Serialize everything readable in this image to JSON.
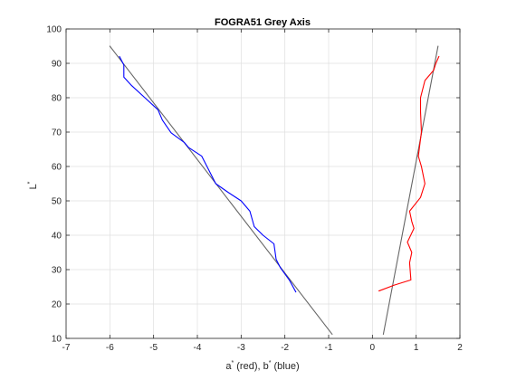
{
  "chart_data": {
    "type": "line",
    "title": "FOGRA51 Grey Axis",
    "xlabel": {
      "a_part": "a",
      "a_sup": "*",
      "a_rest": " (red), b",
      "b_sup": "*",
      "b_rest": " (blue)"
    },
    "ylabel": {
      "main": "L",
      "sup": "*"
    },
    "xlim": [
      -7,
      2
    ],
    "ylim": [
      10,
      100
    ],
    "xticks": [
      "-7",
      "-6",
      "-5",
      "-4",
      "-3",
      "-2",
      "-1",
      "0",
      "1",
      "2"
    ],
    "yticks": [
      "10",
      "20",
      "30",
      "40",
      "50",
      "60",
      "70",
      "80",
      "90",
      "100"
    ],
    "grid": true,
    "legend": "none",
    "series": [
      {
        "color": "#0000ff",
        "points": [
          [
            -5.78,
            92.0
          ],
          [
            -5.68,
            89.5
          ],
          [
            -5.68,
            86.0
          ],
          [
            -5.5,
            83.5
          ],
          [
            -5.2,
            80.0
          ],
          [
            -4.9,
            76.5
          ],
          [
            -4.8,
            73.5
          ],
          [
            -4.6,
            69.8
          ],
          [
            -4.3,
            67.0
          ],
          [
            -4.2,
            65.5
          ],
          [
            -3.9,
            63.0
          ],
          [
            -3.7,
            58.0
          ],
          [
            -3.58,
            55.0
          ],
          [
            -3.3,
            52.5
          ],
          [
            -3.0,
            50.0
          ],
          [
            -2.8,
            47.0
          ],
          [
            -2.7,
            42.5
          ],
          [
            -2.5,
            40.0
          ],
          [
            -2.25,
            37.5
          ],
          [
            -2.2,
            33.0
          ],
          [
            -2.1,
            30.5
          ],
          [
            -1.9,
            27.0
          ],
          [
            -1.75,
            23.5
          ]
        ]
      },
      {
        "color": "#ff0000",
        "points": [
          [
            1.52,
            92.0
          ],
          [
            1.45,
            90.0
          ],
          [
            1.4,
            88.0
          ],
          [
            1.2,
            85.0
          ],
          [
            1.1,
            80.0
          ],
          [
            1.1,
            76.0
          ],
          [
            1.12,
            70.0
          ],
          [
            1.05,
            63.0
          ],
          [
            1.12,
            60.0
          ],
          [
            1.2,
            55.0
          ],
          [
            1.1,
            51.0
          ],
          [
            0.85,
            47.0
          ],
          [
            0.9,
            44.0
          ],
          [
            0.95,
            42.0
          ],
          [
            0.8,
            38.0
          ],
          [
            0.9,
            35.0
          ],
          [
            0.85,
            32.0
          ],
          [
            0.88,
            27.0
          ],
          [
            0.5,
            25.5
          ],
          [
            0.15,
            23.8
          ]
        ]
      },
      {
        "color": "#666666",
        "points": [
          [
            -6.0,
            95.0
          ],
          [
            -0.92,
            11.2
          ]
        ]
      },
      {
        "color": "#666666",
        "points": [
          [
            0.25,
            11.2
          ],
          [
            1.5,
            95.0
          ]
        ]
      }
    ]
  }
}
